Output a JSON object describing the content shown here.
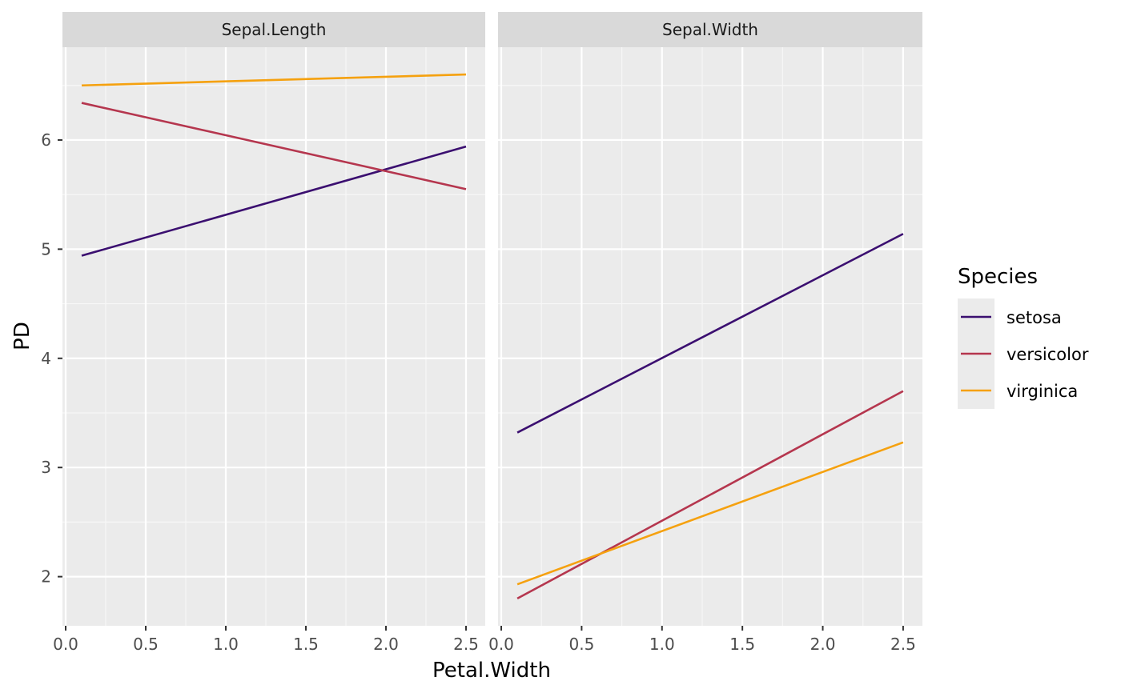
{
  "chart_data": {
    "type": "line",
    "xlabel": "Petal.Width",
    "ylabel": "PD",
    "xlim": [
      -0.02,
      2.62
    ],
    "ylim": [
      1.55,
      6.85
    ],
    "x_ticks": [
      0.0,
      0.5,
      1.0,
      1.5,
      2.0,
      2.5
    ],
    "x_tick_labels": [
      "0.0",
      "0.5",
      "1.0",
      "1.5",
      "2.0",
      "2.5"
    ],
    "y_ticks": [
      2,
      3,
      4,
      5,
      6
    ],
    "y_tick_labels": [
      "2",
      "3",
      "4",
      "5",
      "6"
    ],
    "grid": true,
    "legend": {
      "title": "Species",
      "position": "right"
    },
    "series_colors": {
      "setosa": "#3b0f70",
      "versicolor": "#b5364e",
      "virginica": "#f5a10f"
    },
    "panels": [
      {
        "title": "Sepal.Length",
        "series": [
          {
            "name": "setosa",
            "x": [
              0.1,
              2.5
            ],
            "y": [
              4.94,
              5.94
            ]
          },
          {
            "name": "versicolor",
            "x": [
              0.1,
              2.5
            ],
            "y": [
              6.34,
              5.55
            ]
          },
          {
            "name": "virginica",
            "x": [
              0.1,
              2.5
            ],
            "y": [
              6.5,
              6.6
            ]
          }
        ]
      },
      {
        "title": "Sepal.Width",
        "series": [
          {
            "name": "setosa",
            "x": [
              0.1,
              2.5
            ],
            "y": [
              3.32,
              5.14
            ]
          },
          {
            "name": "versicolor",
            "x": [
              0.1,
              2.5
            ],
            "y": [
              1.8,
              3.7
            ]
          },
          {
            "name": "virginica",
            "x": [
              0.1,
              2.5
            ],
            "y": [
              1.93,
              3.23
            ]
          }
        ]
      }
    ]
  }
}
